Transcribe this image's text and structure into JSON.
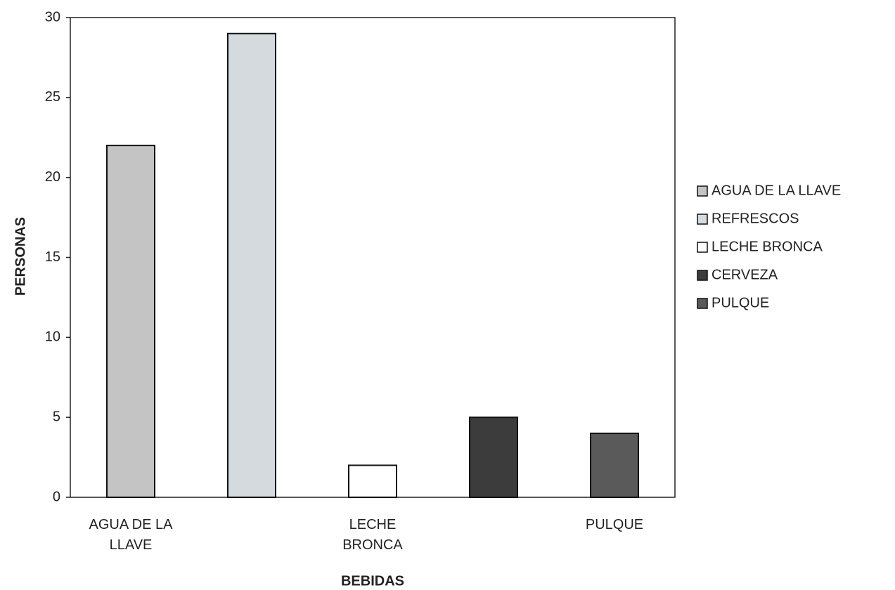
{
  "chart_data": {
    "type": "bar",
    "categories": [
      "AGUA DE LA LLAVE",
      null,
      "LECHE BRONCA",
      null,
      "PULQUE"
    ],
    "values": [
      22,
      29,
      2,
      5,
      4
    ],
    "colors": [
      "#c4c4c4",
      "#d4dadd",
      "#ffffff",
      "#3c3c3c",
      "#5a5a5a"
    ],
    "legend": [
      "AGUA DE LA LLAVE",
      "REFRESCOS",
      "LECHE BRONCA",
      "CERVEZA",
      "PULQUE"
    ],
    "x_label": "BEBIDAS",
    "y_label": "PERSONAS",
    "ylim": [
      0,
      30
    ],
    "yticks": [
      0,
      5,
      10,
      15,
      20,
      25,
      30
    ]
  }
}
